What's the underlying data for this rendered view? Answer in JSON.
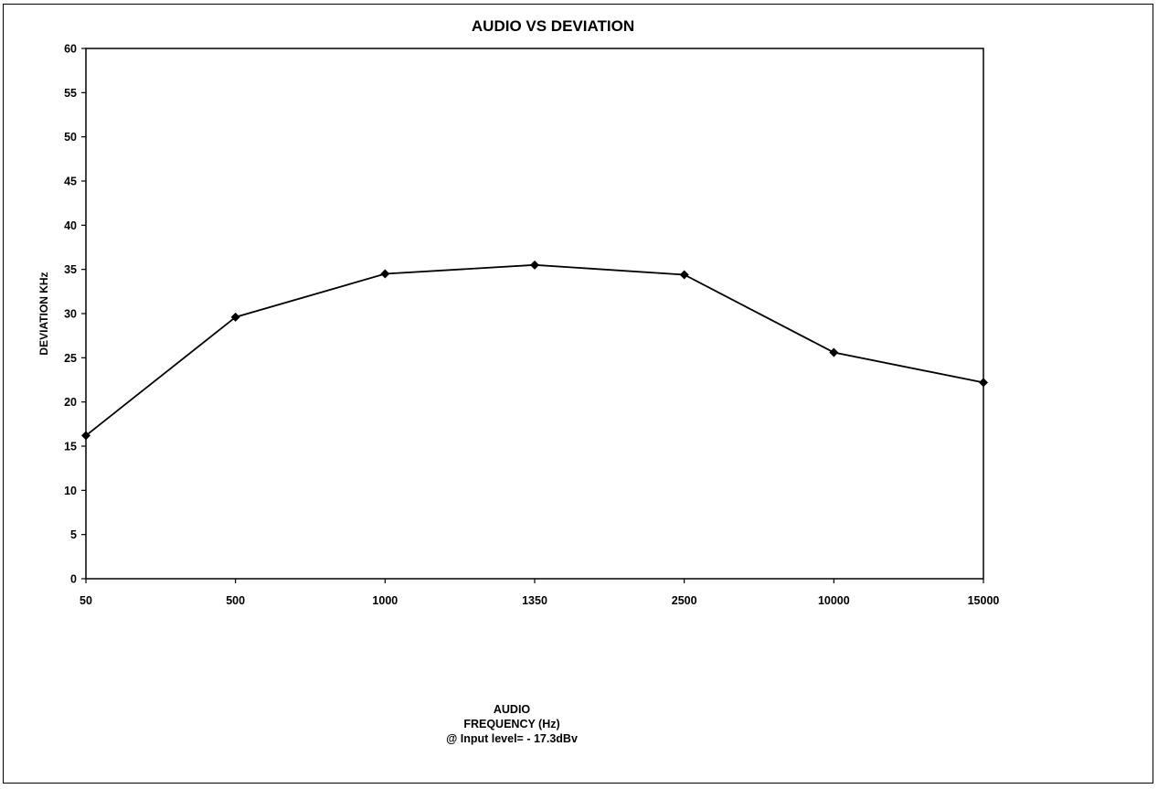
{
  "chart_data": {
    "type": "line",
    "title": "AUDIO  VS DEVIATION",
    "xlabel": [
      "AUDIO",
      "FREQUENCY (Hz)",
      "@ Input level= - 17.3dBv"
    ],
    "ylabel": "DEVIATION KHz",
    "categories": [
      "50",
      "500",
      "1000",
      "1350",
      "2500",
      "10000",
      "15000"
    ],
    "series": [
      {
        "values": [
          16.2,
          29.6,
          34.5,
          35.5,
          34.4,
          25.6,
          22.2
        ]
      }
    ],
    "ylim": [
      0,
      60
    ],
    "yticks": [
      "0",
      "5",
      "10",
      "15",
      "20",
      "25",
      "30",
      "35",
      "40",
      "45",
      "50",
      "55",
      "60"
    ],
    "grid": false,
    "marker": "diamond",
    "line_color": "#000000"
  }
}
